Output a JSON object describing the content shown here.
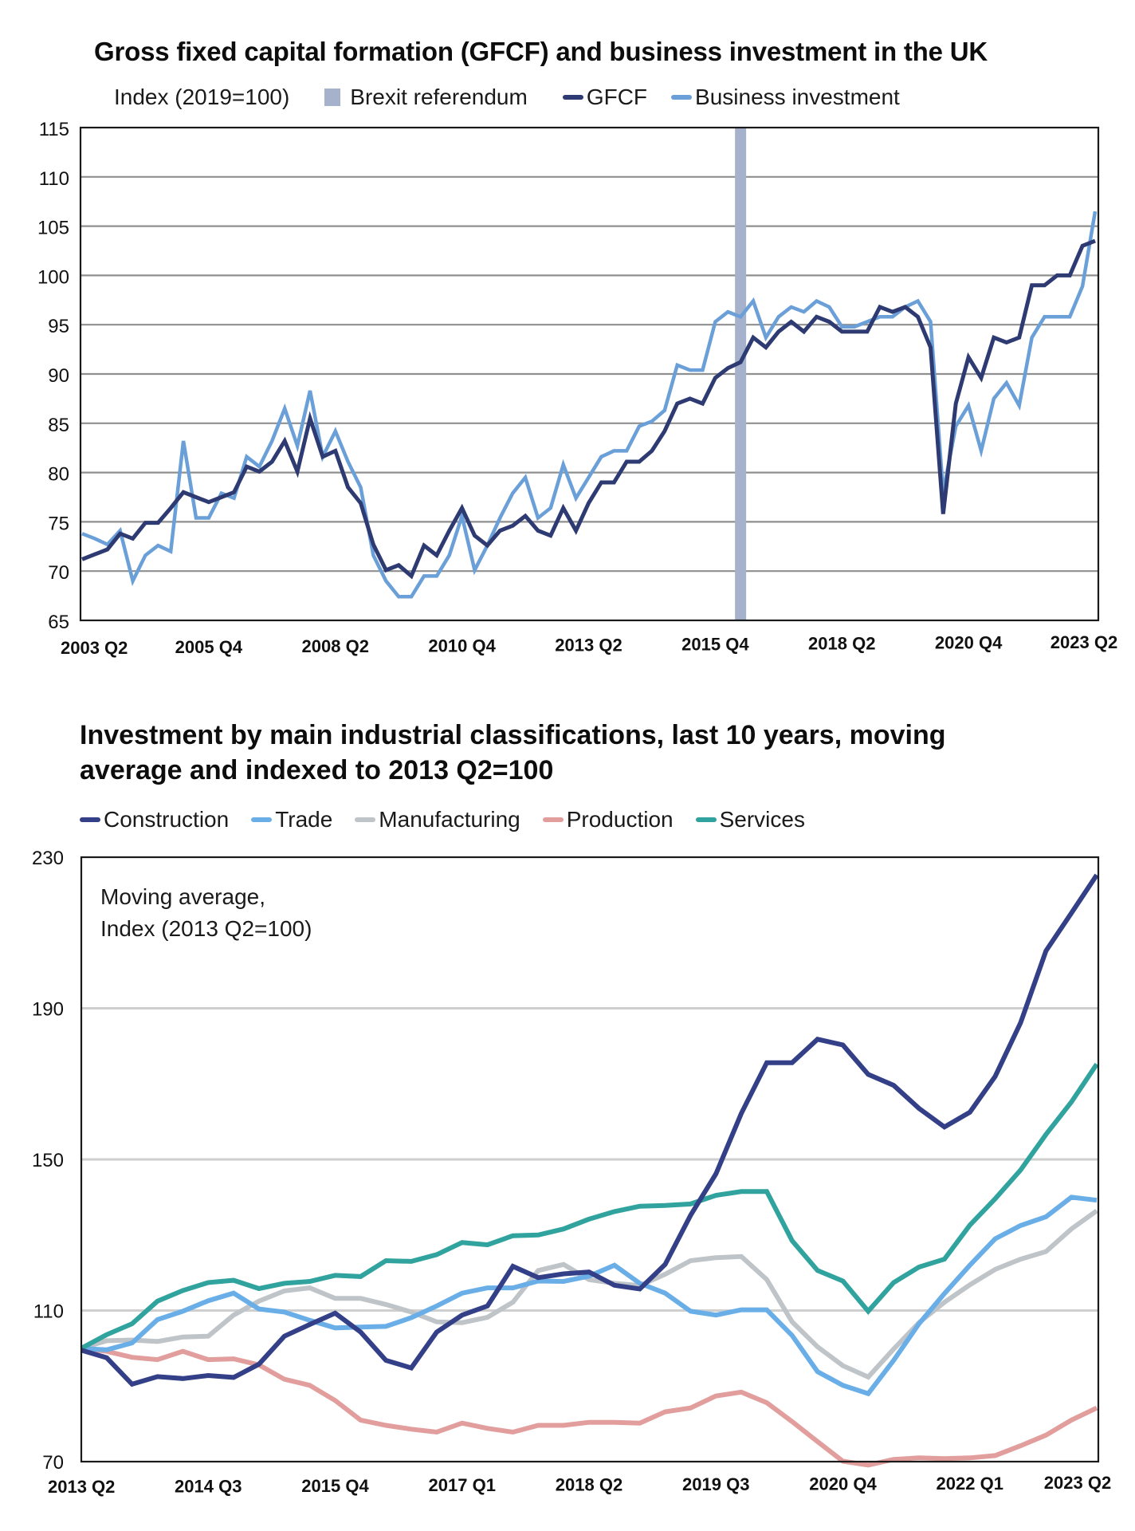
{
  "chart_data": [
    {
      "type": "line",
      "title": "Gross fixed capital formation (GFCF) and business investment in the UK",
      "unit_label": "Index (2019=100)",
      "xlabel": "",
      "ylabel": "Index (2019=100)",
      "ylim": [
        65,
        115
      ],
      "yticks": [
        65,
        70,
        75,
        80,
        85,
        90,
        95,
        100,
        105,
        110,
        115
      ],
      "xtick_labels": [
        "2003 Q2",
        "2005 Q4",
        "2008 Q2",
        "2010 Q4",
        "2013 Q2",
        "2015 Q4",
        "2018 Q2",
        "2020 Q4",
        "2023 Q2"
      ],
      "x_start": "2003 Q2",
      "x_end": "2023 Q2",
      "grid": true,
      "legend_position": "top",
      "annotation": {
        "label": "Brexit referendum",
        "x": "2016 Q2",
        "color": "#a6b2cb"
      },
      "series": [
        {
          "name": "GFCF",
          "color": "#2e3a72",
          "values": [
            71.2,
            71.7,
            72.2,
            73.8,
            73.3,
            74.9,
            74.9,
            76.4,
            78.0,
            77.5,
            77.0,
            77.5,
            78.0,
            80.6,
            80.1,
            81.1,
            83.2,
            80.1,
            85.5,
            81.6,
            82.2,
            78.5,
            76.9,
            72.7,
            70.1,
            70.6,
            69.5,
            72.6,
            71.6,
            74.1,
            76.4,
            73.6,
            72.6,
            74.1,
            74.6,
            75.6,
            74.1,
            73.6,
            76.4,
            74.1,
            76.9,
            79.0,
            79.0,
            81.1,
            81.1,
            82.2,
            84.2,
            87.0,
            87.5,
            87.0,
            89.6,
            90.6,
            91.2,
            93.7,
            92.7,
            94.3,
            95.3,
            94.3,
            95.8,
            95.3,
            94.3,
            94.3,
            94.3,
            96.8,
            96.3,
            96.8,
            95.8,
            92.7,
            75.8,
            87.0,
            91.7,
            89.6,
            93.7,
            93.2,
            93.7,
            99.0,
            99.0,
            100.0,
            100.0,
            103.0,
            103.5
          ]
        },
        {
          "name": "Business investment",
          "color": "#6a9fd8",
          "values": [
            73.8,
            73.3,
            72.7,
            74.1,
            69.0,
            71.6,
            72.6,
            72.0,
            83.2,
            75.4,
            75.4,
            77.9,
            77.4,
            81.6,
            80.6,
            83.2,
            86.5,
            82.7,
            88.3,
            81.6,
            84.2,
            81.1,
            78.5,
            71.6,
            69.0,
            67.4,
            67.4,
            69.5,
            69.5,
            71.6,
            75.6,
            70.1,
            72.6,
            75.4,
            77.9,
            79.5,
            75.4,
            76.4,
            80.8,
            77.4,
            79.5,
            81.6,
            82.2,
            82.2,
            84.7,
            85.2,
            86.3,
            90.9,
            90.4,
            90.4,
            95.3,
            96.3,
            95.8,
            97.4,
            93.7,
            95.8,
            96.8,
            96.3,
            97.4,
            96.8,
            94.8,
            94.8,
            95.3,
            95.8,
            95.8,
            96.8,
            97.4,
            95.3,
            78.0,
            84.7,
            86.8,
            82.2,
            87.5,
            89.1,
            86.8,
            93.7,
            95.8,
            95.8,
            95.8,
            98.9,
            106.5
          ]
        }
      ]
    },
    {
      "type": "line",
      "title": "Investment by main industrial classifications, last 10 years, moving average and indexed to 2013 Q2=100",
      "annotation_text": [
        "Moving average,",
        "Index (2013 Q2=100)"
      ],
      "xlabel": "",
      "ylabel": "Moving average, Index (2013 Q2=100)",
      "ylim": [
        70,
        230
      ],
      "yticks": [
        70,
        110,
        150,
        190,
        230
      ],
      "xtick_labels": [
        "2013 Q2",
        "2014 Q3",
        "2015 Q4",
        "2017 Q1",
        "2018 Q2",
        "2019 Q3",
        "2020 Q4",
        "2022 Q1",
        "2023 Q2"
      ],
      "x_start": "2013 Q2",
      "x_end": "2023 Q2",
      "grid": true,
      "legend_position": "top",
      "series": [
        {
          "name": "Construction",
          "color": "#333f87",
          "values": [
            99.5,
            97.5,
            90.5,
            92.5,
            92.0,
            92.8,
            92.3,
            95.8,
            103.2,
            106.3,
            109.3,
            104.3,
            96.8,
            94.8,
            104.3,
            108.8,
            111.2,
            121.7,
            118.7,
            119.7,
            120.2,
            116.7,
            115.7,
            122.2,
            135.2,
            146.2,
            162.2,
            175.6,
            175.6,
            181.8,
            180.3,
            172.5,
            169.6,
            163.5,
            158.6,
            162.5,
            172.0,
            186.2,
            205.2,
            215.2,
            225.3
          ]
        },
        {
          "name": "Trade",
          "color": "#6aaee8",
          "values": [
            100.0,
            99.6,
            101.4,
            107.6,
            109.8,
            112.6,
            114.6,
            110.4,
            109.6,
            107.4,
            105.4,
            105.6,
            105.8,
            108.1,
            111.2,
            114.6,
            116.0,
            116.0,
            117.8,
            117.7,
            119.1,
            122.0,
            117.2,
            114.6,
            109.8,
            108.8,
            110.2,
            110.2,
            103.4,
            93.8,
            90.2,
            88.0,
            96.8,
            106.5,
            114.5,
            122.0,
            129.0,
            132.5,
            134.8,
            140.0,
            139.2
          ]
        },
        {
          "name": "Manufacturing",
          "color": "#bfc4c8",
          "values": [
            100.0,
            102.0,
            102.2,
            101.8,
            103.0,
            103.2,
            108.8,
            112.5,
            115.2,
            116.0,
            113.2,
            113.2,
            111.6,
            109.6,
            107.0,
            106.8,
            108.2,
            112.2,
            120.6,
            122.2,
            118.2,
            117.2,
            116.6,
            119.6,
            123.2,
            124.0,
            124.3,
            118.2,
            107.0,
            100.4,
            95.4,
            92.4,
            99.8,
            106.8,
            112.2,
            116.8,
            120.9,
            123.6,
            125.6,
            131.6,
            136.4
          ]
        },
        {
          "name": "Production",
          "color": "#e19e9c",
          "values": [
            100.0,
            99.2,
            97.6,
            97.0,
            99.2,
            97.0,
            97.2,
            95.6,
            91.8,
            90.2,
            86.2,
            81.0,
            79.6,
            78.6,
            77.8,
            80.2,
            78.8,
            77.8,
            79.6,
            79.6,
            80.4,
            80.4,
            80.2,
            83.2,
            84.2,
            87.4,
            88.4,
            85.6,
            80.6,
            75.3,
            70.1,
            69.1,
            70.6,
            71.0,
            70.8,
            71.0,
            71.6,
            74.2,
            77.0,
            81.0,
            84.2
          ]
        },
        {
          "name": "Services",
          "color": "#31a39e",
          "values": [
            100.0,
            103.6,
            106.5,
            112.5,
            115.3,
            117.4,
            118.0,
            115.8,
            117.2,
            117.7,
            119.3,
            119.0,
            123.2,
            123.0,
            124.8,
            128.0,
            127.4,
            129.8,
            130.0,
            131.6,
            134.2,
            136.2,
            137.6,
            137.8,
            138.2,
            140.5,
            141.5,
            141.5,
            128.5,
            120.6,
            117.8,
            109.8,
            117.4,
            121.5,
            123.6,
            132.6,
            139.6,
            147.2,
            156.6,
            165.2,
            175.2
          ]
        }
      ]
    }
  ]
}
